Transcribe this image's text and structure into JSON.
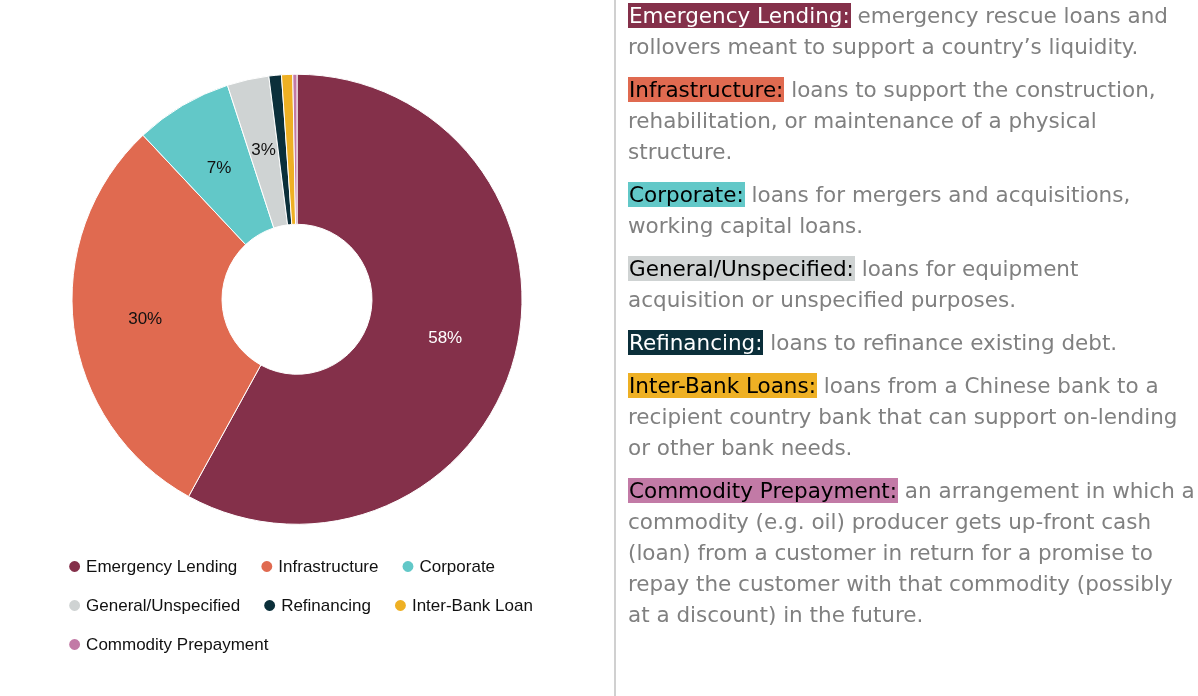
{
  "chart_data": {
    "type": "donut",
    "categories": [
      "Emergency Lending",
      "Infrastructure",
      "Corporate",
      "General/Unspecified",
      "Refinancing",
      "Inter-Bank Loan",
      "Commodity Prepayment"
    ],
    "values": [
      58,
      30,
      7,
      3,
      0.9,
      0.8,
      0.3
    ],
    "colors": [
      "#84304a",
      "#e06a50",
      "#62c8c8",
      "#cfd3d3",
      "#0b2f3a",
      "#eeb024",
      "#c27aa6"
    ],
    "value_labels": [
      "58%",
      "30%",
      "7%",
      "3%",
      null,
      null,
      null
    ],
    "legend": "bottom",
    "annotations": [
      "Emergency Lending: emergency rescue loans and rollovers meant to support a country’s liquidity.",
      "Infrastructure: loans to support the construction, rehabilitation, or maintenance of a physical structure.",
      "Corporate: loans for mergers and acquisitions, working capital loans.",
      "General/Unspecified: loans for equipment acquisition or unspecified purposes.",
      "Refinancing: loans to refinance existing debt.",
      "Inter-Bank Loans: loans from a Chinese bank to a recipient country bank that can support on-lending or other bank needs.",
      "Commodity Prepayment: an arrangement in which a commodity (e.g. oil) producer gets up-front cash (loan) from a customer in return for a promise to repay the customer with that commodity (possibly at a discount) in the future."
    ]
  }
}
